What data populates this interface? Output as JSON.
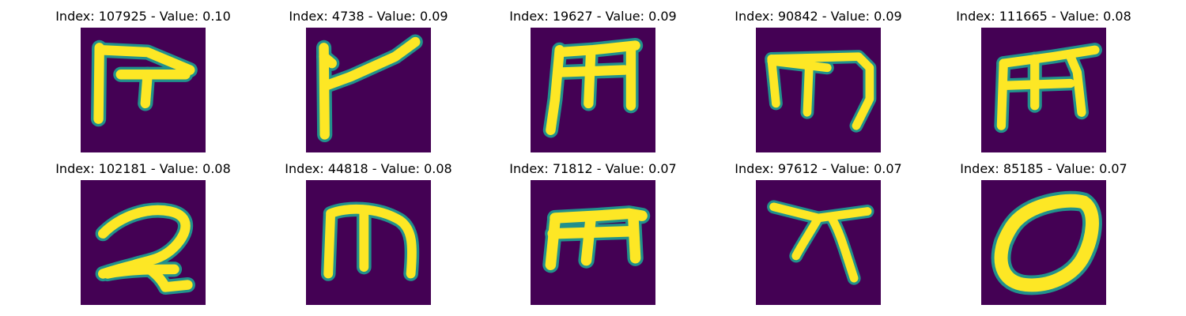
{
  "colors": {
    "background": "#440154",
    "stroke_core": "#fde725",
    "stroke_edge": "#21918c"
  },
  "panels": [
    {
      "title": "Index: 107925 - Value: 0.10",
      "glyph": "image of handwritten character resembling 'F'"
    },
    {
      "title": "Index: 4738 - Value: 0.09",
      "glyph": "image of handwritten character resembling a slanted 'F'"
    },
    {
      "title": "Index: 19627 - Value: 0.09",
      "glyph": "image of handwritten character resembling 'm'"
    },
    {
      "title": "Index: 90842 - Value: 0.09",
      "glyph": "image of handwritten character resembling 'm'"
    },
    {
      "title": "Index: 111665 - Value: 0.08",
      "glyph": "image of handwritten character resembling 'm'"
    },
    {
      "title": "Index: 102181 - Value: 0.08",
      "glyph": "image of handwritten character resembling '2'"
    },
    {
      "title": "Index: 44818 - Value: 0.08",
      "glyph": "image of handwritten character resembling 'm'"
    },
    {
      "title": "Index: 71812 - Value: 0.07",
      "glyph": "image of handwritten character resembling 'm'"
    },
    {
      "title": "Index: 97612 - Value: 0.07",
      "glyph": "image of handwritten character resembling 'x'"
    },
    {
      "title": "Index: 85185 - Value: 0.07",
      "glyph": "image of handwritten character resembling 'o'"
    }
  ]
}
